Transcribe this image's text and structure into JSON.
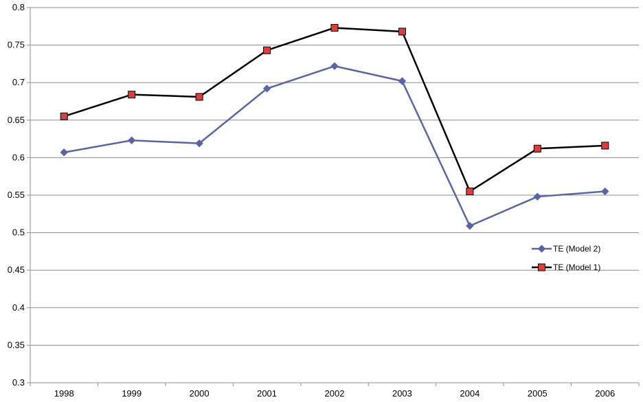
{
  "chart_data": {
    "type": "line",
    "title": "",
    "xlabel": "",
    "ylabel": "",
    "categories": [
      "1998",
      "1999",
      "2000",
      "2001",
      "2002",
      "2003",
      "2004",
      "2005",
      "2006"
    ],
    "ylim": [
      0.3,
      0.8
    ],
    "yticks": [
      "0.3",
      "0.35",
      "0.4",
      "0.45",
      "0.5",
      "0.55",
      "0.6",
      "0.65",
      "0.7",
      "0.75",
      "0.8"
    ],
    "grid": "horizontal",
    "legend_position": "right",
    "series": [
      {
        "name": "TE (Model 2)",
        "color": "#5b63a5",
        "marker": "diamond",
        "values": [
          0.607,
          0.623,
          0.619,
          0.692,
          0.722,
          0.702,
          0.509,
          0.548,
          0.555
        ]
      },
      {
        "name": "TE (Model 1)",
        "color": "#000000",
        "marker": "square",
        "marker_fill": "#d9403c",
        "values": [
          0.655,
          0.684,
          0.681,
          0.743,
          0.773,
          0.768,
          0.555,
          0.612,
          0.616
        ]
      }
    ]
  }
}
